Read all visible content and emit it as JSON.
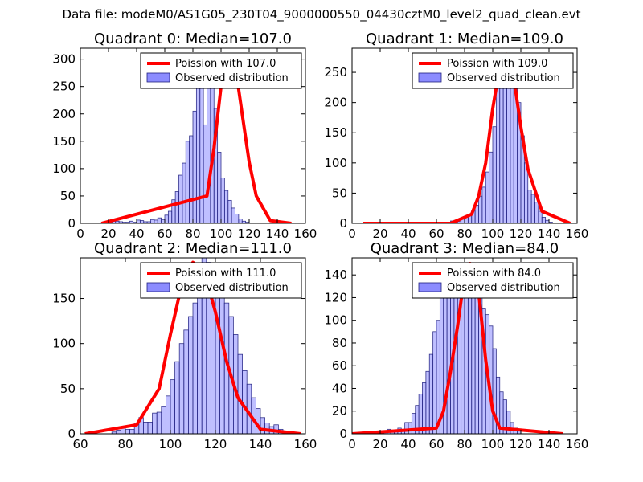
{
  "figure_title": "Data file: modeM0/AS1G05_230T04_9000000550_04430cztM0_level2_quad_clean.evt",
  "colors": {
    "bar_fill": "#8080ff",
    "bar_edge": "#202080",
    "curve": "#ff0000"
  },
  "chart_data": [
    {
      "type": "bar",
      "title": "Quadrant 0: Median=107.0",
      "bin_width": 2.5,
      "bin_start": 15,
      "values": [
        2,
        0,
        2,
        4,
        4,
        3,
        2,
        2,
        4,
        2,
        6,
        5,
        3,
        3,
        7,
        6,
        10,
        7,
        15,
        22,
        43,
        58,
        88,
        110,
        150,
        160,
        205,
        265,
        300,
        180,
        305,
        250,
        210,
        130,
        83,
        60,
        42,
        28,
        17,
        8,
        4,
        2
      ],
      "curve_name": "Poission with 107.0",
      "curve_x": [
        15,
        90,
        95,
        100,
        105,
        107,
        110,
        115,
        120,
        125,
        135,
        150
      ],
      "curve_y": [
        0,
        50,
        138,
        250,
        300,
        305,
        290,
        200,
        112,
        50,
        5,
        0
      ],
      "xlim": [
        0,
        160
      ],
      "ylim": [
        0,
        320
      ],
      "xticks": [
        0,
        20,
        40,
        60,
        80,
        100,
        120,
        140,
        160
      ],
      "yticks": [
        0,
        50,
        100,
        150,
        200,
        250,
        300
      ],
      "legend": [
        "Poission with 107.0",
        "Observed distribution"
      ],
      "legend_position": "upper-right"
    },
    {
      "type": "bar",
      "title": "Quadrant 1: Median=109.0",
      "bin_width": 2.5,
      "bin_start": 67.5,
      "values": [
        2,
        4,
        5,
        3,
        7,
        10,
        15,
        22,
        30,
        45,
        60,
        85,
        118,
        160,
        225,
        260,
        280,
        265,
        245,
        235,
        200,
        145,
        100,
        55,
        48,
        35,
        20,
        10,
        5,
        2
      ],
      "curve_name": "Poission with 109.0",
      "curve_x": [
        8,
        70,
        85,
        90,
        95,
        100,
        105,
        110,
        115,
        120,
        125,
        135,
        155
      ],
      "curve_y": [
        0,
        0,
        15,
        45,
        100,
        190,
        260,
        280,
        240,
        160,
        90,
        20,
        0
      ],
      "xlim": [
        0,
        160
      ],
      "ylim": [
        0,
        290
      ],
      "xticks": [
        0,
        20,
        40,
        60,
        80,
        100,
        120,
        140,
        160
      ],
      "yticks": [
        0,
        50,
        100,
        150,
        200,
        250
      ],
      "legend": [
        "Poission with 109.0",
        "Observed distribution"
      ],
      "legend_position": "upper-right"
    },
    {
      "type": "bar",
      "title": "Quadrant 2: Median=111.0",
      "bin_width": 2,
      "bin_start": 74,
      "values": [
        2,
        4,
        8,
        5,
        5,
        12,
        18,
        13,
        13,
        23,
        24,
        30,
        42,
        60,
        80,
        100,
        115,
        130,
        145,
        185,
        200,
        190,
        185,
        175,
        160,
        145,
        130,
        110,
        88,
        70,
        55,
        40,
        28,
        18,
        12,
        8,
        10,
        5
      ],
      "curve_name": "Poission with 111.0",
      "curve_x": [
        62,
        85,
        95,
        100,
        105,
        110,
        115,
        120,
        125,
        130,
        140,
        158
      ],
      "curve_y": [
        0,
        10,
        50,
        110,
        165,
        190,
        180,
        135,
        80,
        40,
        5,
        0
      ],
      "xlim": [
        60,
        160
      ],
      "ylim": [
        0,
        195
      ],
      "xticks": [
        60,
        80,
        100,
        120,
        140,
        160
      ],
      "yticks": [
        0,
        50,
        100,
        150
      ],
      "legend": [
        "Poission with 111.0",
        "Observed distribution"
      ],
      "legend_position": "upper-right"
    },
    {
      "type": "bar",
      "title": "Quadrant 3: Median=84.0",
      "bin_width": 2.5,
      "bin_start": 20,
      "values": [
        2,
        2,
        4,
        3,
        2,
        5,
        4,
        10,
        10,
        18,
        25,
        35,
        45,
        55,
        70,
        90,
        100,
        120,
        145,
        150,
        135,
        130,
        145,
        150,
        125,
        130,
        140,
        125,
        120,
        110,
        105,
        95,
        75,
        50,
        37,
        30,
        20,
        10,
        5,
        3
      ],
      "curve_name": "Poission with 84.0",
      "curve_x": [
        0,
        60,
        65,
        70,
        75,
        80,
        84,
        88,
        90,
        95,
        100,
        105,
        150
      ],
      "curve_y": [
        0,
        5,
        20,
        55,
        95,
        140,
        150,
        140,
        125,
        65,
        20,
        5,
        0
      ],
      "xlim": [
        0,
        160
      ],
      "ylim": [
        0,
        155
      ],
      "xticks": [
        0,
        20,
        40,
        60,
        80,
        100,
        120,
        140,
        160
      ],
      "yticks": [
        0,
        20,
        40,
        60,
        80,
        100,
        120,
        140
      ],
      "legend": [
        "Poission with 84.0",
        "Observed distribution"
      ],
      "legend_position": "upper-right"
    }
  ]
}
